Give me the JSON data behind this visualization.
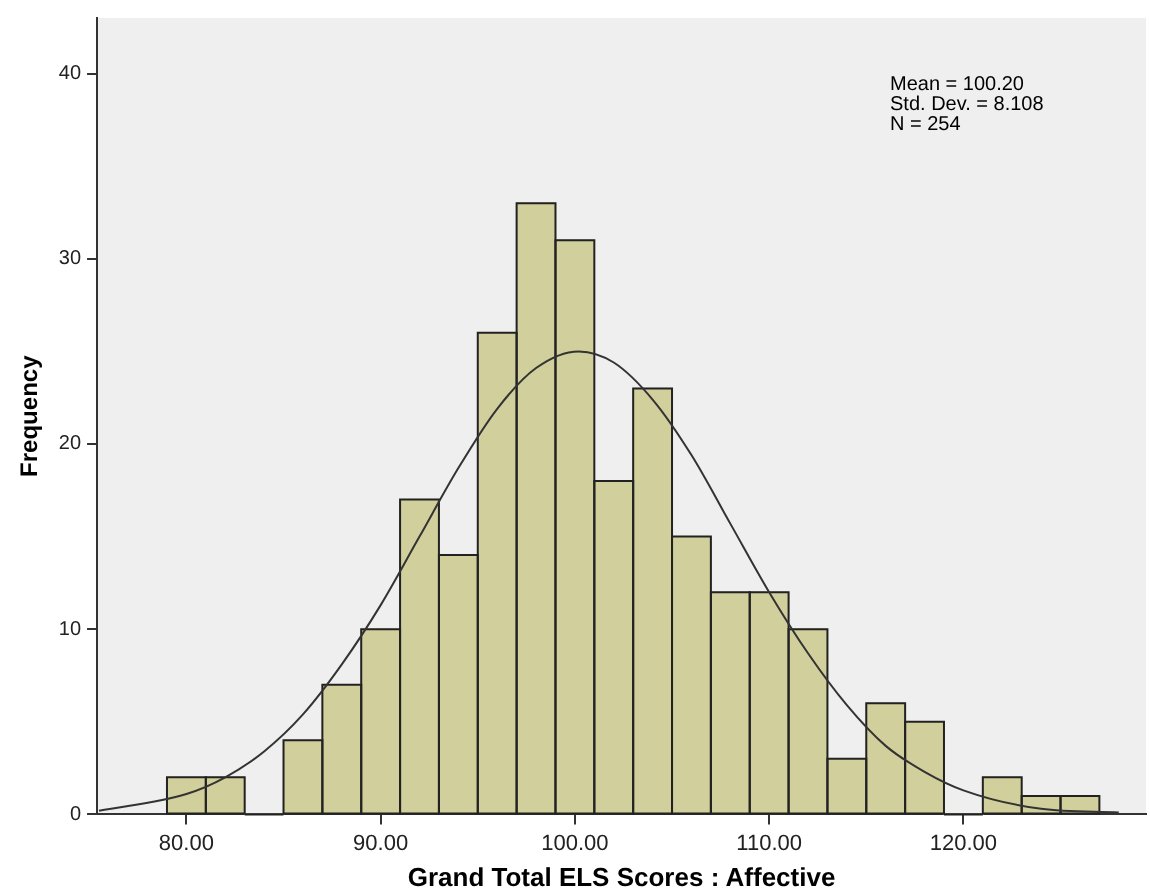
{
  "chart_data": {
    "type": "histogram",
    "xlabel": "Grand Total ELS Scores : Affective",
    "ylabel": "Frequency",
    "annotations": [
      "Mean = 100.20",
      "Std. Dev. = 8.108",
      "N = 254"
    ],
    "xlim": [
      75.4,
      129.4
    ],
    "xticks": [
      {
        "value": 80,
        "label": "80.00"
      },
      {
        "value": 90,
        "label": "90.00"
      },
      {
        "value": 100,
        "label": "100.00"
      },
      {
        "value": 110,
        "label": "110.00"
      },
      {
        "value": 120,
        "label": "120.00"
      }
    ],
    "ylim": [
      0,
      43
    ],
    "yticks": [
      0,
      10,
      20,
      30,
      40
    ],
    "grid": false,
    "legend": false,
    "series": [
      {
        "type": "histogram",
        "color": "#d1cf9b",
        "bins": [
          79,
          81,
          83,
          85,
          87,
          89,
          91,
          93,
          95,
          97,
          99,
          101,
          103,
          105,
          107,
          109,
          111,
          113,
          115,
          117,
          119,
          121,
          123,
          125,
          127
        ],
        "values": [
          2,
          2,
          0,
          4,
          7,
          10,
          17,
          14,
          26,
          33,
          31,
          18,
          23,
          15,
          12,
          12,
          10,
          3,
          6,
          5,
          0,
          2,
          1,
          1
        ]
      },
      {
        "type": "line",
        "color": "#333333",
        "x": [
          75.5,
          80,
          82,
          84,
          86,
          88,
          90,
          92,
          94,
          96,
          98,
          100.2,
          102,
          104,
          106,
          108,
          110,
          112,
          114,
          116,
          118,
          120,
          124,
          128
        ],
        "values": [
          0.2,
          1.1,
          2.0,
          3.4,
          5.4,
          8.1,
          11.3,
          15.0,
          18.7,
          21.9,
          24.1,
          25.0,
          24.4,
          22.4,
          19.4,
          15.7,
          12.0,
          8.7,
          5.9,
          3.7,
          2.3,
          1.3,
          0.3,
          0.1
        ]
      }
    ]
  }
}
